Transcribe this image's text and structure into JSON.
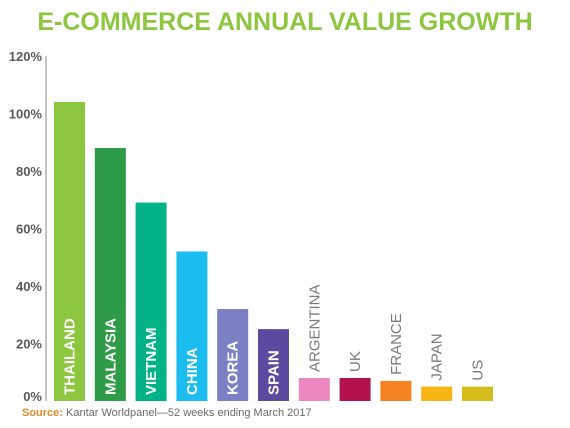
{
  "chart_data": {
    "type": "bar",
    "title": "E-COMMERCE ANNUAL VALUE GROWTH",
    "categories": [
      "THAILAND",
      "MALAYSIA",
      "VIETNAM",
      "CHINA",
      "KOREA",
      "SPAIN",
      "ARGENTINA",
      "UK",
      "FRANCE",
      "JAPAN",
      "US"
    ],
    "values": [
      104,
      88,
      69,
      52,
      32,
      25,
      8,
      8,
      7,
      5,
      5
    ],
    "colors": [
      "#8dc63f",
      "#2e9b46",
      "#00b386",
      "#1bbcef",
      "#7b7fc4",
      "#5c4aa0",
      "#ec87c0",
      "#b4124e",
      "#f58220",
      "#f7b513",
      "#d4bc1b"
    ],
    "ylim": [
      0,
      120
    ],
    "yticks": [
      "0%",
      "20%",
      "40%",
      "60%",
      "80%",
      "100%",
      "120%"
    ],
    "ytick_values": [
      0,
      20,
      40,
      60,
      80,
      100,
      120
    ],
    "xlabel": "",
    "ylabel": "",
    "grid": false,
    "legend": "none",
    "title_color": "#8dc63f"
  },
  "source": {
    "label": "Source:",
    "text": " Kantar Worldpanel—52 weeks ending March 2017"
  }
}
